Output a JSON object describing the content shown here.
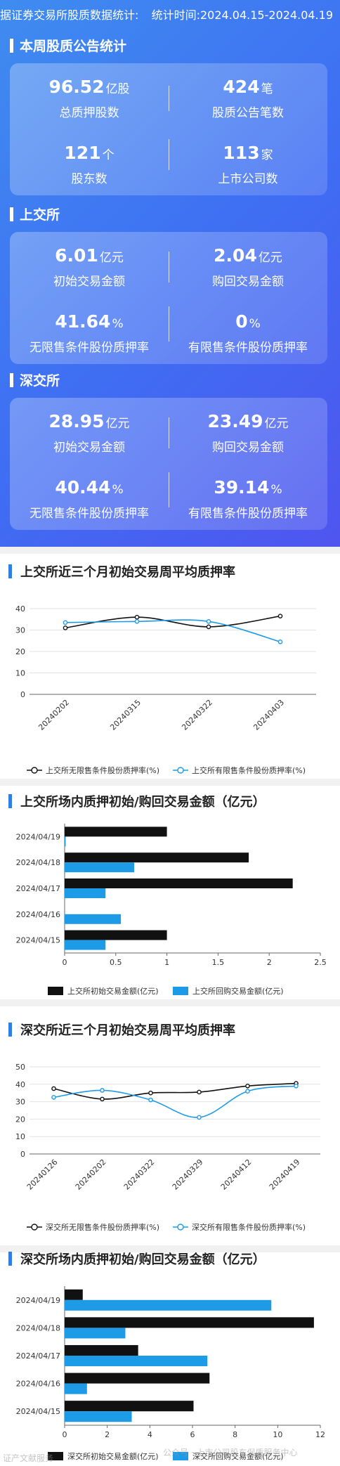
{
  "header": {
    "left_text": "据证券交易所股质数据统计:",
    "right_text": "统计时间:2024.04.15-2024.04.19"
  },
  "weekly_summary": {
    "title": "本周股质公告统计",
    "stats": [
      {
        "value": "96.52",
        "unit": "亿股",
        "label": "总质押股数"
      },
      {
        "value": "424",
        "unit": "笔",
        "label": "股质公告笔数"
      },
      {
        "value": "121",
        "unit": "个",
        "label": "股东数"
      },
      {
        "value": "113",
        "unit": "家",
        "label": "上市公司数"
      }
    ]
  },
  "sse": {
    "title": "上交所",
    "stats": [
      {
        "value": "6.01",
        "unit": "亿元",
        "label": "初始交易金额"
      },
      {
        "value": "2.04",
        "unit": "亿元",
        "label": "购回交易金额"
      },
      {
        "value": "41.64",
        "unit": "%",
        "label": "无限售条件股份质押率"
      },
      {
        "value": "0",
        "unit": "%",
        "label": "有限售条件股份质押率"
      }
    ]
  },
  "szse": {
    "title": "深交所",
    "stats": [
      {
        "value": "28.95",
        "unit": "亿元",
        "label": "初始交易金额"
      },
      {
        "value": "23.49",
        "unit": "亿元",
        "label": "购回交易金额"
      },
      {
        "value": "40.44",
        "unit": "%",
        "label": "无限售条件股份质押率"
      },
      {
        "value": "39.14",
        "unit": "%",
        "label": "有限售条件股份质押率"
      }
    ]
  },
  "watermark": {
    "left": "证产文献服务",
    "right": "公众号 · 上市公司股东保质服务中心"
  },
  "colors": {
    "black_series": "#111111",
    "blue_series": "#1e9be6",
    "accent": "#2f7fe6"
  },
  "chart_data": [
    {
      "type": "line",
      "title": "上交所近三个月初始交易周平均质押率",
      "categories": [
        "20240202",
        "20240315",
        "20240322",
        "20240403"
      ],
      "series": [
        {
          "name": "上交所无限售条件股份质押率(%)",
          "values": [
            31,
            36,
            31.5,
            36.5
          ]
        },
        {
          "name": "上交所有限售条件股份质押率(%)",
          "values": [
            33.5,
            34,
            34,
            24.5
          ]
        }
      ],
      "ylim": [
        0,
        40
      ],
      "yticks": [
        0,
        10,
        20,
        30,
        40
      ],
      "legend": "bottom"
    },
    {
      "type": "bar",
      "orientation": "horizontal",
      "title": "上交所场内质押初始/购回交易金额（亿元）",
      "categories": [
        "2024/04/19",
        "2024/04/18",
        "2024/04/17",
        "2024/04/16",
        "2024/04/15"
      ],
      "series": [
        {
          "name": "上交所初始交易金额(亿元)",
          "values": [
            1.0,
            1.8,
            2.23,
            0,
            1.0
          ]
        },
        {
          "name": "上交所回购交易金额(亿元)",
          "values": [
            0.01,
            0.68,
            0.4,
            0.55,
            0.4
          ]
        }
      ],
      "xlim": [
        0,
        2.5
      ],
      "xticks": [
        "0",
        "0.5",
        "1",
        "1.5",
        "2",
        "2.5"
      ],
      "legend": "bottom"
    },
    {
      "type": "line",
      "title": "深交所近三个月初始交易周平均质押率",
      "categories": [
        "20240126",
        "20240202",
        "20240322",
        "20240329",
        "20240412",
        "20240419"
      ],
      "series": [
        {
          "name": "深交所无限售条件股份质押率(%)",
          "values": [
            37.5,
            31.5,
            35,
            35.5,
            39,
            40.5
          ]
        },
        {
          "name": "深交所有限售条件股份质押率(%)",
          "values": [
            32.5,
            36.5,
            31,
            21,
            36,
            39
          ]
        }
      ],
      "ylim": [
        0,
        50
      ],
      "yticks": [
        0,
        10,
        20,
        30,
        40,
        50
      ],
      "legend": "bottom"
    },
    {
      "type": "bar",
      "orientation": "horizontal",
      "title": "深交所场内质押初始/购回交易金额（亿元）",
      "categories": [
        "2024/04/19",
        "2024/04/18",
        "2024/04/17",
        "2024/04/16",
        "2024/04/15"
      ],
      "series": [
        {
          "name": "深交所初始交易金额(亿元)",
          "values": [
            0.85,
            11.7,
            3.45,
            6.8,
            6.05
          ]
        },
        {
          "name": "深交所回购交易金额(亿元)",
          "values": [
            9.7,
            2.85,
            6.7,
            1.05,
            3.15
          ]
        }
      ],
      "xlim": [
        0,
        12
      ],
      "xticks": [
        "0",
        "2",
        "4",
        "6",
        "8",
        "10",
        "12"
      ],
      "legend": "bottom"
    }
  ]
}
